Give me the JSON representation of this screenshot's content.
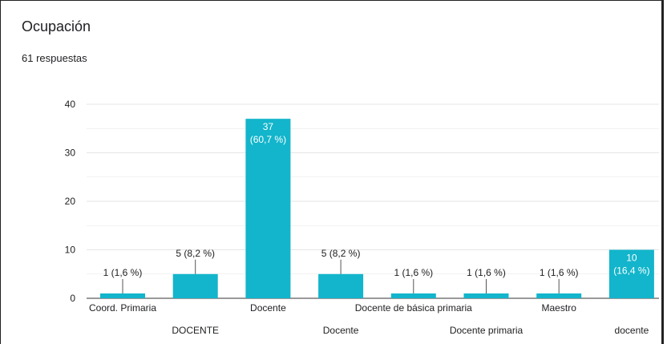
{
  "header": {
    "title": "Ocupación",
    "responses": "61 respuestas"
  },
  "colors": {
    "bar": "#12b5cb",
    "grid": "#e6e6e6",
    "axis": "#333333"
  },
  "chart_data": {
    "type": "bar",
    "title": "Ocupación",
    "xlabel": "",
    "ylabel": "",
    "ylim": [
      0,
      40
    ],
    "yticks": [
      0,
      10,
      20,
      30,
      40
    ],
    "grid": true,
    "categories": [
      "Coord. Primaria",
      "DOCENTE",
      "Docente",
      "Docente",
      "Docente de básica primaria",
      "Docente primaria",
      "Maestro",
      "docente"
    ],
    "values": [
      1,
      5,
      37,
      5,
      1,
      1,
      1,
      10
    ],
    "labels": [
      "1 (1,6 %)",
      "5 (8,2 %)",
      "37|(60,7 %)",
      "5 (8,2 %)",
      "1 (1,6 %)",
      "1 (1,6 %)",
      "1 (1,6 %)",
      "10|(16,4 %)"
    ],
    "label_inside": [
      false,
      false,
      true,
      false,
      false,
      false,
      false,
      true
    ]
  }
}
